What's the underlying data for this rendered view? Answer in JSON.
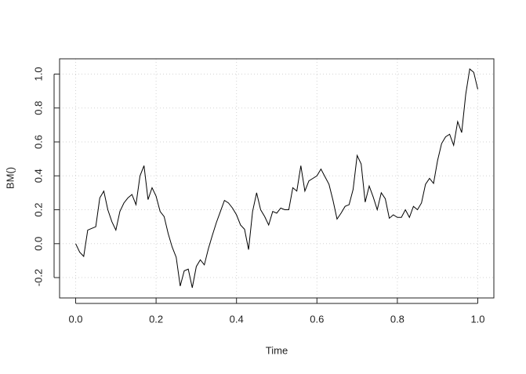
{
  "chart_data": {
    "type": "line",
    "x_label": "Time",
    "y_label": "BM()",
    "color": "#000000",
    "grid": true,
    "x": [
      0,
      0.01,
      0.02,
      0.03,
      0.04,
      0.05,
      0.06,
      0.07,
      0.08,
      0.09,
      0.1,
      0.11,
      0.12,
      0.13,
      0.14,
      0.15,
      0.16,
      0.17,
      0.18,
      0.19,
      0.2,
      0.21,
      0.22,
      0.23,
      0.24,
      0.25,
      0.26,
      0.27,
      0.28,
      0.29,
      0.3,
      0.31,
      0.32,
      0.33,
      0.34,
      0.35,
      0.36,
      0.37,
      0.38,
      0.39,
      0.4,
      0.41,
      0.42,
      0.43,
      0.44,
      0.45,
      0.46,
      0.47,
      0.48,
      0.49,
      0.5,
      0.51,
      0.52,
      0.53,
      0.54,
      0.55,
      0.56,
      0.57,
      0.58,
      0.59,
      0.6,
      0.61,
      0.62,
      0.63,
      0.64,
      0.65,
      0.66,
      0.67,
      0.68,
      0.69,
      0.7,
      0.71,
      0.72,
      0.73,
      0.74,
      0.75,
      0.76,
      0.77,
      0.78,
      0.79,
      0.8,
      0.81,
      0.82,
      0.83,
      0.84,
      0.85,
      0.86,
      0.87,
      0.88,
      0.89,
      0.9,
      0.91,
      0.92,
      0.93,
      0.94,
      0.95,
      0.96,
      0.97,
      0.98,
      0.99,
      1
    ],
    "values": [
      0,
      -0.05,
      -0.075,
      0.08,
      0.09,
      0.1,
      0.27,
      0.31,
      0.2,
      0.13,
      0.08,
      0.19,
      0.24,
      0.27,
      0.29,
      0.23,
      0.4,
      0.46,
      0.26,
      0.33,
      0.28,
      0.19,
      0.16,
      0.06,
      -0.02,
      -0.08,
      -0.25,
      -0.16,
      -0.15,
      -0.26,
      -0.135,
      -0.095,
      -0.125,
      -0.03,
      0.05,
      0.125,
      0.19,
      0.255,
      0.24,
      0.21,
      0.17,
      0.11,
      0.085,
      -0.035,
      0.19,
      0.3,
      0.2,
      0.16,
      0.11,
      0.19,
      0.18,
      0.21,
      0.2,
      0.2,
      0.33,
      0.31,
      0.46,
      0.31,
      0.37,
      0.385,
      0.4,
      0.44,
      0.395,
      0.35,
      0.255,
      0.145,
      0.18,
      0.22,
      0.23,
      0.32,
      0.52,
      0.47,
      0.245,
      0.34,
      0.275,
      0.2,
      0.3,
      0.265,
      0.15,
      0.17,
      0.155,
      0.155,
      0.2,
      0.155,
      0.22,
      0.2,
      0.24,
      0.35,
      0.385,
      0.355,
      0.49,
      0.59,
      0.63,
      0.645,
      0.58,
      0.72,
      0.655,
      0.88,
      1.03,
      1.01,
      0.91
    ],
    "xlim": [
      -0.04,
      1.04
    ],
    "ylim": [
      -0.32,
      1.09
    ],
    "xticks": [
      {
        "value": 0,
        "label": "0.0"
      },
      0.2,
      0.4,
      0.6,
      0.8,
      {
        "value": 1,
        "label": "1.0"
      }
    ],
    "yticks": [
      -0.2,
      {
        "value": 0,
        "label": "0.0"
      },
      0.2,
      0.4,
      0.6,
      0.8,
      {
        "value": 1,
        "label": "1.0"
      }
    ]
  }
}
